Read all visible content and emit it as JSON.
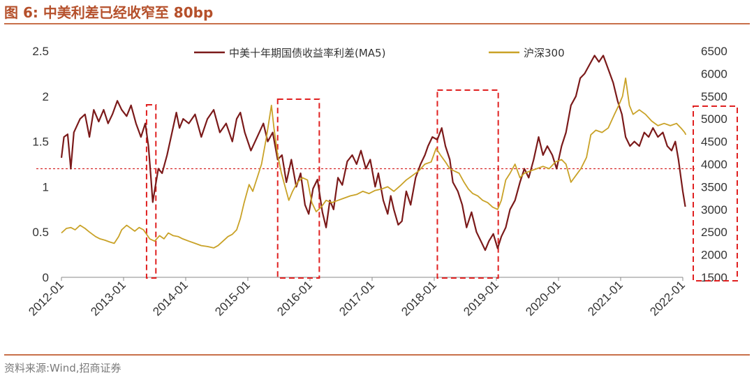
{
  "figure": {
    "title": "图 6:  中美利差已经收窄至 80bp",
    "source": "资料来源:Wind,招商证券",
    "accent_color": "#b5502b"
  },
  "chart_data": {
    "type": "line",
    "legend_placement": "top-center",
    "grid": false,
    "x_ticks": [
      "2012-01",
      "2013-01",
      "2014-01",
      "2015-01",
      "2016-01",
      "2017-01",
      "2018-01",
      "2019-01",
      "2020-01",
      "2021-01",
      "2022-01"
    ],
    "y_left": {
      "range": [
        0,
        2.5
      ],
      "ticks": [
        "0",
        "0.5",
        "1",
        "1.5",
        "2",
        "2.5"
      ]
    },
    "y_right": {
      "range": [
        1500,
        6500
      ],
      "ticks": [
        "1500",
        "2000",
        "2500",
        "3000",
        "3500",
        "4000",
        "4500",
        "5000",
        "5500",
        "6000",
        "6500"
      ]
    },
    "reference_line": {
      "axis": "left",
      "value": 1.2,
      "color": "#d62728"
    },
    "highlight_ranges": [
      {
        "from": 2013.37,
        "to": 2013.52
      },
      {
        "from": 2015.48,
        "to": 2016.15
      },
      {
        "from": 2018.05,
        "to": 2019.03
      },
      {
        "from": 2022.15,
        "to": 2022.65
      }
    ],
    "series": [
      {
        "name": "中美十年期国债收益率利差(MA5)",
        "axis": "left",
        "color": "#7b1a1a",
        "points": [
          [
            2012.0,
            1.32
          ],
          [
            2012.04,
            1.55
          ],
          [
            2012.1,
            1.58
          ],
          [
            2012.15,
            1.2
          ],
          [
            2012.2,
            1.6
          ],
          [
            2012.3,
            1.75
          ],
          [
            2012.38,
            1.8
          ],
          [
            2012.45,
            1.55
          ],
          [
            2012.52,
            1.85
          ],
          [
            2012.6,
            1.72
          ],
          [
            2012.68,
            1.85
          ],
          [
            2012.75,
            1.7
          ],
          [
            2012.82,
            1.8
          ],
          [
            2012.9,
            1.95
          ],
          [
            2012.97,
            1.85
          ],
          [
            2013.05,
            1.78
          ],
          [
            2013.12,
            1.9
          ],
          [
            2013.2,
            1.7
          ],
          [
            2013.28,
            1.55
          ],
          [
            2013.35,
            1.7
          ],
          [
            2013.4,
            1.45
          ],
          [
            2013.44,
            1.1
          ],
          [
            2013.47,
            0.83
          ],
          [
            2013.51,
            1.0
          ],
          [
            2013.56,
            1.2
          ],
          [
            2013.62,
            1.15
          ],
          [
            2013.7,
            1.35
          ],
          [
            2013.78,
            1.6
          ],
          [
            2013.85,
            1.82
          ],
          [
            2013.9,
            1.65
          ],
          [
            2013.96,
            1.75
          ],
          [
            2014.05,
            1.7
          ],
          [
            2014.15,
            1.8
          ],
          [
            2014.25,
            1.55
          ],
          [
            2014.35,
            1.75
          ],
          [
            2014.45,
            1.85
          ],
          [
            2014.55,
            1.6
          ],
          [
            2014.65,
            1.7
          ],
          [
            2014.75,
            1.5
          ],
          [
            2014.82,
            1.75
          ],
          [
            2014.88,
            1.82
          ],
          [
            2014.95,
            1.6
          ],
          [
            2015.05,
            1.4
          ],
          [
            2015.15,
            1.55
          ],
          [
            2015.25,
            1.7
          ],
          [
            2015.32,
            1.5
          ],
          [
            2015.4,
            1.6
          ],
          [
            2015.48,
            1.3
          ],
          [
            2015.55,
            1.35
          ],
          [
            2015.62,
            1.05
          ],
          [
            2015.7,
            1.3
          ],
          [
            2015.78,
            1.0
          ],
          [
            2015.85,
            1.15
          ],
          [
            2015.92,
            0.8
          ],
          [
            2015.98,
            0.7
          ],
          [
            2016.05,
            0.98
          ],
          [
            2016.12,
            1.08
          ],
          [
            2016.2,
            0.72
          ],
          [
            2016.26,
            0.55
          ],
          [
            2016.32,
            0.85
          ],
          [
            2016.38,
            0.75
          ],
          [
            2016.45,
            1.1
          ],
          [
            2016.52,
            1.02
          ],
          [
            2016.6,
            1.28
          ],
          [
            2016.68,
            1.35
          ],
          [
            2016.75,
            1.25
          ],
          [
            2016.82,
            1.4
          ],
          [
            2016.9,
            1.2
          ],
          [
            2016.97,
            1.3
          ],
          [
            2017.05,
            1.0
          ],
          [
            2017.1,
            1.15
          ],
          [
            2017.18,
            0.85
          ],
          [
            2017.25,
            0.7
          ],
          [
            2017.3,
            0.9
          ],
          [
            2017.35,
            0.75
          ],
          [
            2017.42,
            0.58
          ],
          [
            2017.48,
            0.62
          ],
          [
            2017.55,
            0.95
          ],
          [
            2017.62,
            0.8
          ],
          [
            2017.7,
            1.1
          ],
          [
            2017.78,
            1.25
          ],
          [
            2017.85,
            1.35
          ],
          [
            2017.9,
            1.45
          ],
          [
            2017.97,
            1.55
          ],
          [
            2018.05,
            1.52
          ],
          [
            2018.12,
            1.65
          ],
          [
            2018.18,
            1.45
          ],
          [
            2018.25,
            1.3
          ],
          [
            2018.3,
            1.05
          ],
          [
            2018.38,
            0.95
          ],
          [
            2018.45,
            0.8
          ],
          [
            2018.52,
            0.55
          ],
          [
            2018.6,
            0.72
          ],
          [
            2018.68,
            0.5
          ],
          [
            2018.75,
            0.4
          ],
          [
            2018.82,
            0.3
          ],
          [
            2018.88,
            0.4
          ],
          [
            2018.95,
            0.48
          ],
          [
            2019.02,
            0.32
          ],
          [
            2019.08,
            0.45
          ],
          [
            2019.15,
            0.55
          ],
          [
            2019.22,
            0.75
          ],
          [
            2019.3,
            0.85
          ],
          [
            2019.38,
            1.05
          ],
          [
            2019.45,
            1.2
          ],
          [
            2019.52,
            1.1
          ],
          [
            2019.6,
            1.3
          ],
          [
            2019.68,
            1.55
          ],
          [
            2019.75,
            1.35
          ],
          [
            2019.82,
            1.45
          ],
          [
            2019.9,
            1.35
          ],
          [
            2019.97,
            1.2
          ],
          [
            2020.05,
            1.45
          ],
          [
            2020.12,
            1.6
          ],
          [
            2020.2,
            1.9
          ],
          [
            2020.28,
            2.0
          ],
          [
            2020.35,
            2.2
          ],
          [
            2020.42,
            2.25
          ],
          [
            2020.5,
            2.35
          ],
          [
            2020.58,
            2.45
          ],
          [
            2020.65,
            2.38
          ],
          [
            2020.72,
            2.45
          ],
          [
            2020.8,
            2.3
          ],
          [
            2020.88,
            2.15
          ],
          [
            2020.95,
            1.95
          ],
          [
            2021.02,
            1.8
          ],
          [
            2021.08,
            1.55
          ],
          [
            2021.15,
            1.45
          ],
          [
            2021.22,
            1.5
          ],
          [
            2021.3,
            1.45
          ],
          [
            2021.38,
            1.6
          ],
          [
            2021.45,
            1.55
          ],
          [
            2021.52,
            1.65
          ],
          [
            2021.6,
            1.55
          ],
          [
            2021.68,
            1.6
          ],
          [
            2021.75,
            1.45
          ],
          [
            2021.82,
            1.4
          ],
          [
            2021.88,
            1.5
          ],
          [
            2021.93,
            1.3
          ],
          [
            2021.97,
            1.1
          ],
          [
            2022.0,
            0.95
          ],
          [
            2022.04,
            0.78
          ]
        ]
      },
      {
        "name": "沪深300",
        "axis": "right",
        "color": "#c9a227",
        "points": [
          [
            2012.0,
            2480
          ],
          [
            2012.08,
            2580
          ],
          [
            2012.15,
            2600
          ],
          [
            2012.22,
            2550
          ],
          [
            2012.3,
            2650
          ],
          [
            2012.38,
            2580
          ],
          [
            2012.45,
            2500
          ],
          [
            2012.55,
            2400
          ],
          [
            2012.62,
            2350
          ],
          [
            2012.7,
            2320
          ],
          [
            2012.78,
            2280
          ],
          [
            2012.85,
            2250
          ],
          [
            2012.92,
            2400
          ],
          [
            2012.97,
            2550
          ],
          [
            2013.05,
            2650
          ],
          [
            2013.1,
            2600
          ],
          [
            2013.18,
            2520
          ],
          [
            2013.25,
            2600
          ],
          [
            2013.32,
            2550
          ],
          [
            2013.42,
            2350
          ],
          [
            2013.5,
            2300
          ],
          [
            2013.58,
            2420
          ],
          [
            2013.65,
            2350
          ],
          [
            2013.72,
            2480
          ],
          [
            2013.8,
            2420
          ],
          [
            2013.88,
            2400
          ],
          [
            2013.95,
            2350
          ],
          [
            2014.05,
            2300
          ],
          [
            2014.15,
            2250
          ],
          [
            2014.25,
            2200
          ],
          [
            2014.35,
            2180
          ],
          [
            2014.45,
            2150
          ],
          [
            2014.52,
            2200
          ],
          [
            2014.6,
            2300
          ],
          [
            2014.68,
            2400
          ],
          [
            2014.75,
            2450
          ],
          [
            2014.82,
            2550
          ],
          [
            2014.88,
            2800
          ],
          [
            2014.94,
            3150
          ],
          [
            2015.02,
            3550
          ],
          [
            2015.08,
            3400
          ],
          [
            2015.15,
            3700
          ],
          [
            2015.22,
            4000
          ],
          [
            2015.3,
            4600
          ],
          [
            2015.38,
            5300
          ],
          [
            2015.42,
            4800
          ],
          [
            2015.48,
            4200
          ],
          [
            2015.54,
            3800
          ],
          [
            2015.6,
            3500
          ],
          [
            2015.66,
            3200
          ],
          [
            2015.72,
            3400
          ],
          [
            2015.8,
            3600
          ],
          [
            2015.88,
            3700
          ],
          [
            2015.96,
            3650
          ],
          [
            2016.03,
            3150
          ],
          [
            2016.1,
            2950
          ],
          [
            2016.18,
            3050
          ],
          [
            2016.26,
            3200
          ],
          [
            2016.35,
            3150
          ],
          [
            2016.45,
            3200
          ],
          [
            2016.55,
            3250
          ],
          [
            2016.65,
            3300
          ],
          [
            2016.75,
            3330
          ],
          [
            2016.85,
            3400
          ],
          [
            2016.95,
            3350
          ],
          [
            2017.05,
            3420
          ],
          [
            2017.15,
            3450
          ],
          [
            2017.25,
            3500
          ],
          [
            2017.35,
            3400
          ],
          [
            2017.45,
            3520
          ],
          [
            2017.55,
            3650
          ],
          [
            2017.65,
            3750
          ],
          [
            2017.75,
            3850
          ],
          [
            2017.85,
            4000
          ],
          [
            2017.95,
            4050
          ],
          [
            2018.03,
            4350
          ],
          [
            2018.1,
            4200
          ],
          [
            2018.18,
            4050
          ],
          [
            2018.25,
            3900
          ],
          [
            2018.32,
            3850
          ],
          [
            2018.4,
            3800
          ],
          [
            2018.48,
            3600
          ],
          [
            2018.55,
            3450
          ],
          [
            2018.62,
            3350
          ],
          [
            2018.7,
            3300
          ],
          [
            2018.78,
            3200
          ],
          [
            2018.86,
            3150
          ],
          [
            2018.94,
            3050
          ],
          [
            2019.02,
            3000
          ],
          [
            2019.08,
            3200
          ],
          [
            2019.15,
            3650
          ],
          [
            2019.22,
            3800
          ],
          [
            2019.3,
            4000
          ],
          [
            2019.38,
            3700
          ],
          [
            2019.45,
            3800
          ],
          [
            2019.55,
            3850
          ],
          [
            2019.65,
            3900
          ],
          [
            2019.75,
            3950
          ],
          [
            2019.85,
            3900
          ],
          [
            2019.95,
            4050
          ],
          [
            2020.05,
            4100
          ],
          [
            2020.12,
            4000
          ],
          [
            2020.2,
            3600
          ],
          [
            2020.28,
            3750
          ],
          [
            2020.36,
            3900
          ],
          [
            2020.45,
            4150
          ],
          [
            2020.52,
            4650
          ],
          [
            2020.6,
            4750
          ],
          [
            2020.7,
            4700
          ],
          [
            2020.8,
            4800
          ],
          [
            2020.9,
            5100
          ],
          [
            2020.97,
            5300
          ],
          [
            2021.03,
            5500
          ],
          [
            2021.08,
            5900
          ],
          [
            2021.14,
            5300
          ],
          [
            2021.2,
            5100
          ],
          [
            2021.3,
            5200
          ],
          [
            2021.4,
            5100
          ],
          [
            2021.5,
            4950
          ],
          [
            2021.6,
            4850
          ],
          [
            2021.7,
            4900
          ],
          [
            2021.8,
            4850
          ],
          [
            2021.9,
            4900
          ],
          [
            2021.97,
            4800
          ],
          [
            2022.03,
            4700
          ],
          [
            2022.05,
            4650
          ]
        ]
      }
    ]
  }
}
